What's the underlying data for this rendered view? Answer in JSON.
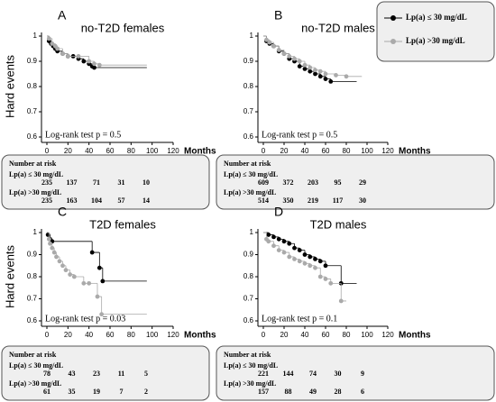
{
  "chart_data": [
    {
      "type": "km",
      "title": "A",
      "subtitle": "no-T2D females",
      "y_label": "Hard events",
      "x_label": "Months",
      "annotation": "Log-rank test p = 0.5",
      "xlim": [
        0,
        120
      ],
      "xticks": [
        0,
        20,
        40,
        60,
        80,
        100,
        120
      ],
      "ylim": [
        0.6,
        1
      ],
      "yticks": [
        0.6,
        0.7,
        0.8,
        0.9,
        1
      ],
      "series": [
        {
          "name": "Lp(a) ≤ 30 mg/dL",
          "color": "#000000",
          "x": [
            0,
            2,
            4,
            6,
            8,
            10,
            15,
            20,
            25,
            30,
            35,
            40,
            43,
            45,
            95
          ],
          "values": [
            1,
            0.98,
            0.97,
            0.96,
            0.95,
            0.94,
            0.93,
            0.92,
            0.92,
            0.91,
            0.9,
            0.89,
            0.88,
            0.875,
            0.875
          ]
        },
        {
          "name": "Lp(a) >30 mg/dL",
          "color": "#aaaaaa",
          "x": [
            0,
            2,
            5,
            8,
            10,
            15,
            20,
            30,
            40,
            45,
            50,
            95
          ],
          "values": [
            1,
            0.99,
            0.97,
            0.96,
            0.95,
            0.93,
            0.92,
            0.92,
            0.9,
            0.89,
            0.885,
            0.885
          ]
        }
      ],
      "risk_table": {
        "title": "Number at risk",
        "rows": [
          {
            "label": "Lp(a) ≤ 30 mg/dL",
            "values": [
              235,
              137,
              71,
              31,
              10
            ]
          },
          {
            "label": "Lp(a) >30 mg/dL",
            "values": [
              235,
              163,
              104,
              57,
              14
            ]
          }
        ]
      }
    },
    {
      "type": "km",
      "title": "B",
      "subtitle": "no-T2D males",
      "x_label": "Months",
      "annotation": "Log-rank test p = 0.5",
      "xlim": [
        0,
        120
      ],
      "xticks": [
        0,
        20,
        40,
        60,
        80,
        100,
        120
      ],
      "ylim": [
        0.6,
        1
      ],
      "yticks": [
        0.6,
        0.7,
        0.8,
        0.9,
        1
      ],
      "series": [
        {
          "name": "Lp(a) ≤ 30 mg/dL",
          "color": "#000000",
          "x": [
            0,
            3,
            6,
            10,
            15,
            20,
            25,
            30,
            35,
            40,
            45,
            50,
            55,
            60,
            65,
            90
          ],
          "values": [
            1,
            0.98,
            0.97,
            0.96,
            0.94,
            0.93,
            0.91,
            0.9,
            0.88,
            0.87,
            0.86,
            0.85,
            0.84,
            0.83,
            0.82,
            0.82
          ]
        },
        {
          "name": "Lp(a) >30 mg/dL",
          "color": "#aaaaaa",
          "x": [
            0,
            3,
            6,
            10,
            15,
            20,
            25,
            30,
            35,
            40,
            45,
            50,
            55,
            60,
            70,
            80,
            95
          ],
          "values": [
            1,
            0.985,
            0.975,
            0.96,
            0.945,
            0.93,
            0.92,
            0.91,
            0.9,
            0.885,
            0.875,
            0.865,
            0.86,
            0.85,
            0.845,
            0.84,
            0.84
          ]
        }
      ],
      "risk_table": {
        "title": "Number at risk",
        "rows": [
          {
            "label": "Lp(a) ≤ 30 mg/dL",
            "values": [
              609,
              372,
              203,
              95,
              29
            ]
          },
          {
            "label": "Lp(a) >30 mg/dL",
            "values": [
              514,
              350,
              219,
              117,
              30
            ]
          }
        ]
      }
    },
    {
      "type": "km",
      "title": "C",
      "subtitle": "T2D females",
      "y_label": "Hard events",
      "x_label": "Months",
      "annotation": "Log-rank test p = 0.03",
      "xlim": [
        0,
        120
      ],
      "xticks": [
        0,
        20,
        40,
        60,
        80,
        100,
        120
      ],
      "ylim": [
        0.6,
        1
      ],
      "yticks": [
        0.6,
        0.7,
        0.8,
        0.9,
        1
      ],
      "series": [
        {
          "name": "Lp(a) ≤ 30 mg/dL",
          "color": "#000000",
          "x": [
            0,
            1,
            3,
            5,
            43,
            50,
            53,
            95
          ],
          "values": [
            1,
            0.99,
            0.97,
            0.96,
            0.91,
            0.84,
            0.78,
            0.78
          ]
        },
        {
          "name": "Lp(a) >30 mg/dL",
          "color": "#aaaaaa",
          "x": [
            0,
            2,
            3,
            5,
            7,
            9,
            12,
            15,
            18,
            22,
            26,
            35,
            40,
            48,
            52,
            95
          ],
          "values": [
            1,
            0.97,
            0.95,
            0.93,
            0.91,
            0.89,
            0.87,
            0.85,
            0.83,
            0.81,
            0.8,
            0.77,
            0.77,
            0.71,
            0.63,
            0.63
          ]
        }
      ],
      "risk_table": {
        "title": "Number at risk",
        "rows": [
          {
            "label": "Lp(a) ≤ 30 mg/dL",
            "values": [
              78,
              43,
              23,
              11,
              5
            ]
          },
          {
            "label": "Lp(a) >30 mg/dL",
            "values": [
              61,
              35,
              19,
              7,
              2
            ]
          }
        ]
      }
    },
    {
      "type": "km",
      "title": "D",
      "subtitle": "T2D males",
      "x_label": "Months",
      "annotation": "Log-rank test p = 0.1",
      "xlim": [
        0,
        120
      ],
      "xticks": [
        0,
        20,
        40,
        60,
        80,
        100,
        120
      ],
      "ylim": [
        0.6,
        1
      ],
      "yticks": [
        0.6,
        0.7,
        0.8,
        0.9,
        1
      ],
      "series": [
        {
          "name": "Lp(a) ≤ 30 mg/dL",
          "color": "#000000",
          "x": [
            0,
            5,
            10,
            15,
            20,
            25,
            30,
            35,
            40,
            45,
            50,
            55,
            60,
            75,
            90
          ],
          "values": [
            1,
            0.99,
            0.98,
            0.97,
            0.96,
            0.95,
            0.93,
            0.92,
            0.9,
            0.89,
            0.88,
            0.87,
            0.85,
            0.77,
            0.77
          ]
        },
        {
          "name": "Lp(a) >30 mg/dL",
          "color": "#aaaaaa",
          "x": [
            0,
            3,
            5,
            10,
            15,
            20,
            25,
            30,
            35,
            40,
            45,
            50,
            55,
            60,
            65,
            75,
            80
          ],
          "values": [
            1,
            0.97,
            0.96,
            0.94,
            0.92,
            0.91,
            0.89,
            0.88,
            0.87,
            0.86,
            0.85,
            0.84,
            0.8,
            0.79,
            0.77,
            0.69,
            0.69
          ]
        }
      ],
      "risk_table": {
        "title": "Number at risk",
        "rows": [
          {
            "label": "Lp(a) ≤ 30 mg/dL",
            "values": [
              221,
              144,
              74,
              30,
              9
            ]
          },
          {
            "label": "Lp(a) >30 mg/dL",
            "values": [
              157,
              88,
              49,
              28,
              6
            ]
          }
        ]
      }
    }
  ]
}
